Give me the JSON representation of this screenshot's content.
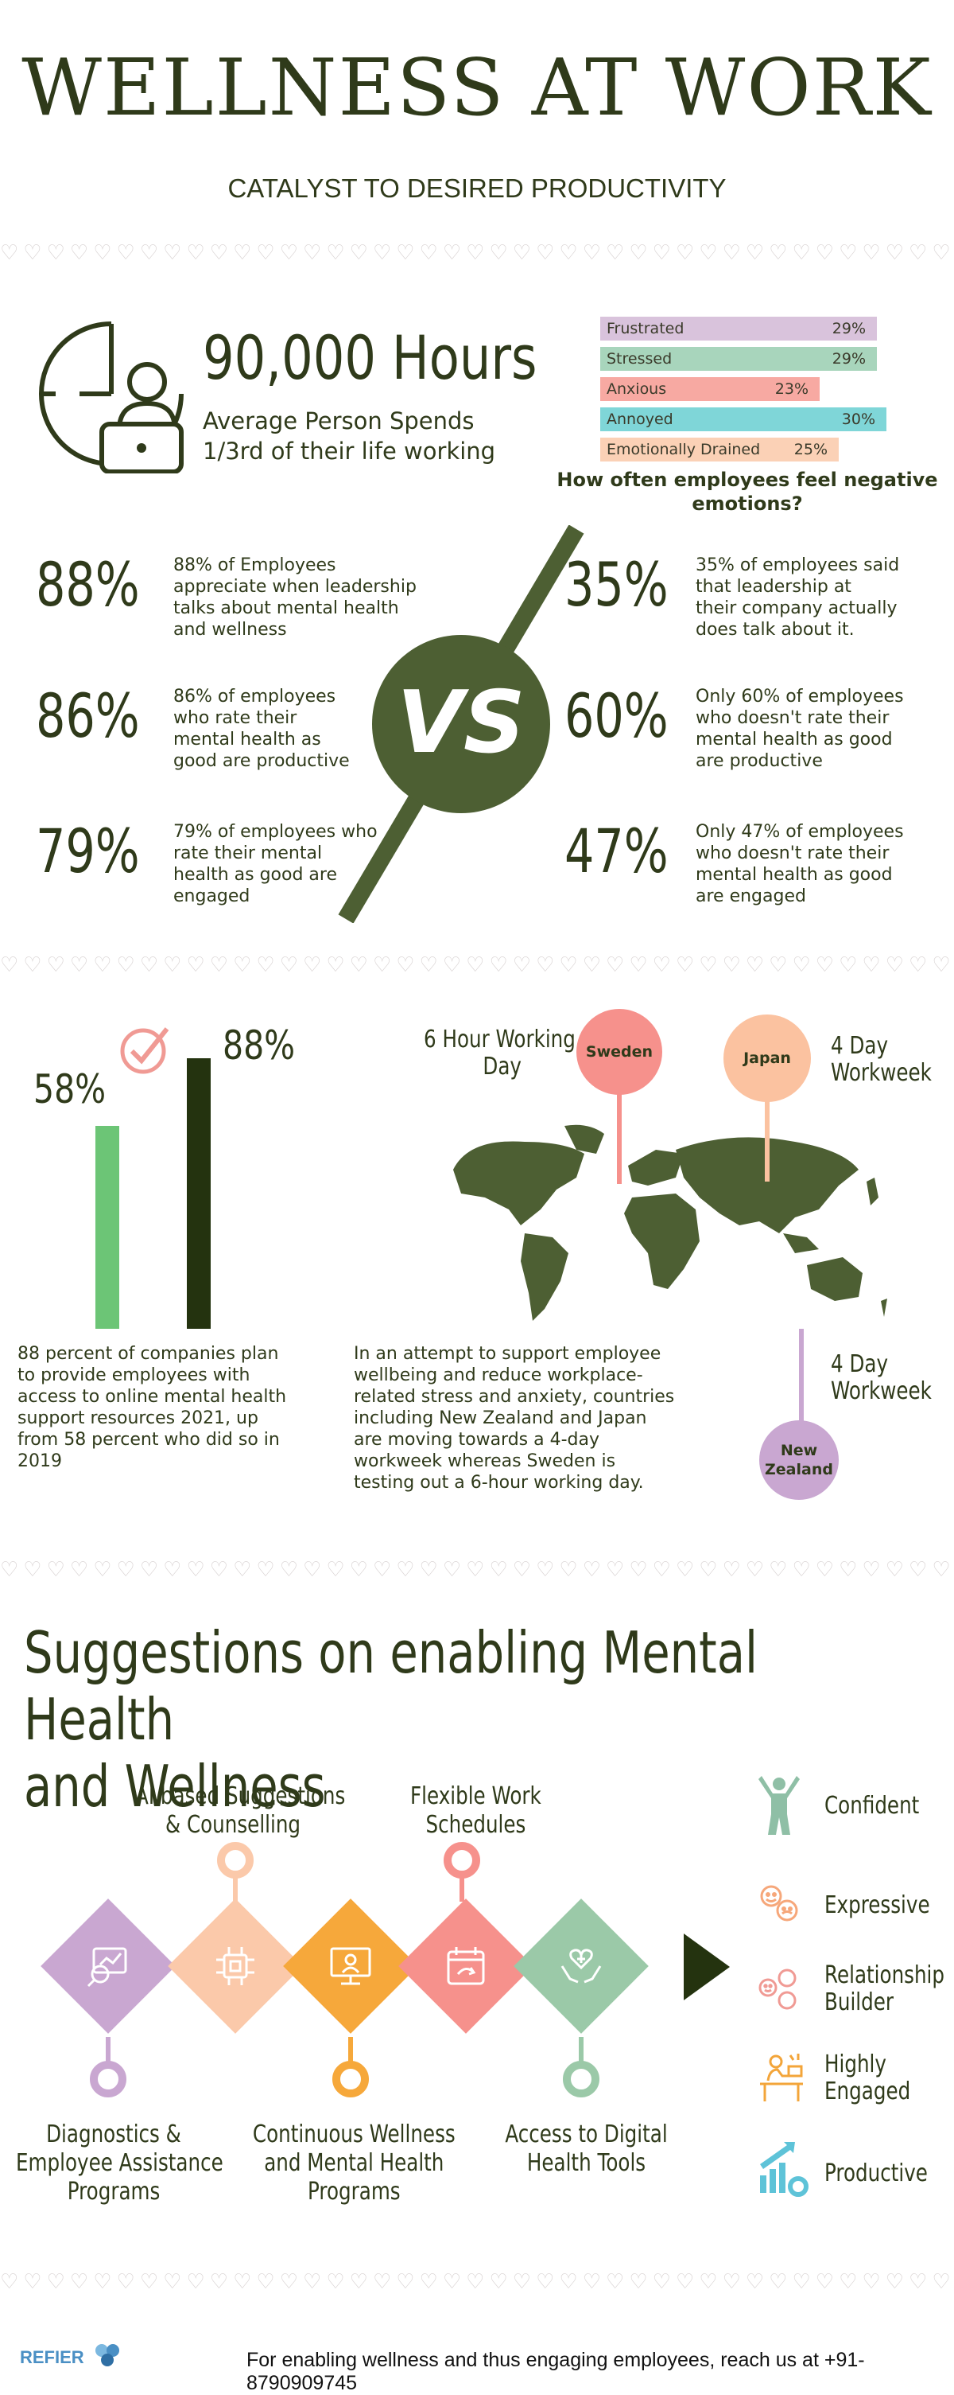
{
  "header": {
    "title": "WELLNESS AT WORK",
    "subtitle": "CATALYST TO DESIRED PRODUCTIVITY"
  },
  "hours": {
    "value": "90,000 Hours",
    "line1": "Average Person Spends",
    "line2": "1/3rd of their life working"
  },
  "emotions": {
    "items": [
      {
        "label": "Frustrated",
        "pct": "29%",
        "value": 29,
        "color": "#d9c3dc"
      },
      {
        "label": "Stressed",
        "pct": "29%",
        "value": 29,
        "color": "#a8d5bc"
      },
      {
        "label": "Anxious",
        "pct": "23%",
        "value": 23,
        "color": "#f7a9a2"
      },
      {
        "label": "Annoyed",
        "pct": "30%",
        "value": 30,
        "color": "#7fd6d8"
      },
      {
        "label": "Emotionally Drained",
        "pct": "25%",
        "value": 25,
        "color": "#fbd1b6"
      }
    ],
    "caption1": "How often employees feel negative",
    "caption2": "emotions?"
  },
  "vs": {
    "label": "VS",
    "left": [
      {
        "num": "88%",
        "lines": [
          "88% of Employees",
          "appreciate when leadership",
          "talks about mental health",
          "and wellness"
        ]
      },
      {
        "num": "86%",
        "lines": [
          "86% of employees",
          "who rate their",
          "mental health as",
          "good are productive"
        ]
      },
      {
        "num": "79%",
        "lines": [
          "79% of employees who",
          "rate their mental",
          "health as good are",
          "engaged"
        ]
      }
    ],
    "right": [
      {
        "num": "35%",
        "lines": [
          "35% of employees said",
          "that leadership at",
          "their company actually",
          "does talk about it."
        ]
      },
      {
        "num": "60%",
        "lines": [
          "Only 60% of employees",
          "who doesn't rate their",
          "mental health as  good",
          "are productive"
        ]
      },
      {
        "num": "47%",
        "lines": [
          "Only 47% of employees",
          "who doesn't rate their",
          "mental health as good",
          "are engaged"
        ]
      }
    ]
  },
  "online_support": {
    "before_pct": "58%",
    "after_pct": "88%",
    "before_value": 58,
    "after_value": 88,
    "text_lines": [
      "88 percent of companies plan",
      "to provide employees with",
      "access to online mental health",
      "support resources 2021, up",
      "from 58 percent who did so in",
      "2019"
    ]
  },
  "world": {
    "sweden_label": "Sweden",
    "sweden_caption1": "6 Hour Working",
    "sweden_caption2": "Day",
    "japan_label": "Japan",
    "japan_caption1": "4 Day",
    "japan_caption2": "Workweek",
    "nz_label1": "New",
    "nz_label2": "Zealand",
    "nz_caption1": "4 Day",
    "nz_caption2": "Workweek",
    "text_lines": [
      "In an attempt to support employee",
      "wellbeing and reduce workplace-",
      "related stress and anxiety, countries",
      "including New Zealand and Japan",
      "are moving towards a 4-day",
      "workweek whereas Sweden is",
      "testing out a 6-hour working day."
    ]
  },
  "suggestions": {
    "title_line1": "Suggestions on enabling Mental Health",
    "title_line2": "and Wellness",
    "top_labels": [
      {
        "line1": "AI based Suggestions",
        "line2": "& Counselling"
      },
      {
        "line1": "Flexible Work",
        "line2": "Schedules"
      }
    ],
    "bottom_labels": [
      {
        "line1": "Diagnostics &",
        "line2": "Employee Assistance",
        "line3": "Programs"
      },
      {
        "line1": "Continuous Wellness",
        "line2": "and Mental Health",
        "line3": "Programs"
      },
      {
        "line1": "Access to Digital",
        "line2": "Health Tools"
      }
    ],
    "colors": [
      "#c9a7d1",
      "#fbc9aa",
      "#f6a83b",
      "#f6918c",
      "#9bc9a8"
    ],
    "traits": [
      {
        "label": "Confident",
        "icon": "confident-icon"
      },
      {
        "label": "Expressive",
        "icon": "expressive-icon"
      },
      {
        "label": "Relationship Builder",
        "line1": "Relationship",
        "line2": "Builder",
        "icon": "relationship-icon"
      },
      {
        "label": "Highly Engaged",
        "line1": "Highly",
        "line2": "Engaged",
        "icon": "engaged-icon"
      },
      {
        "label": "Productive",
        "icon": "productive-icon"
      }
    ]
  },
  "footer": {
    "brand": "REFIER",
    "contact": "For enabling wellness and thus engaging employees, reach us at +91-8790909745"
  }
}
